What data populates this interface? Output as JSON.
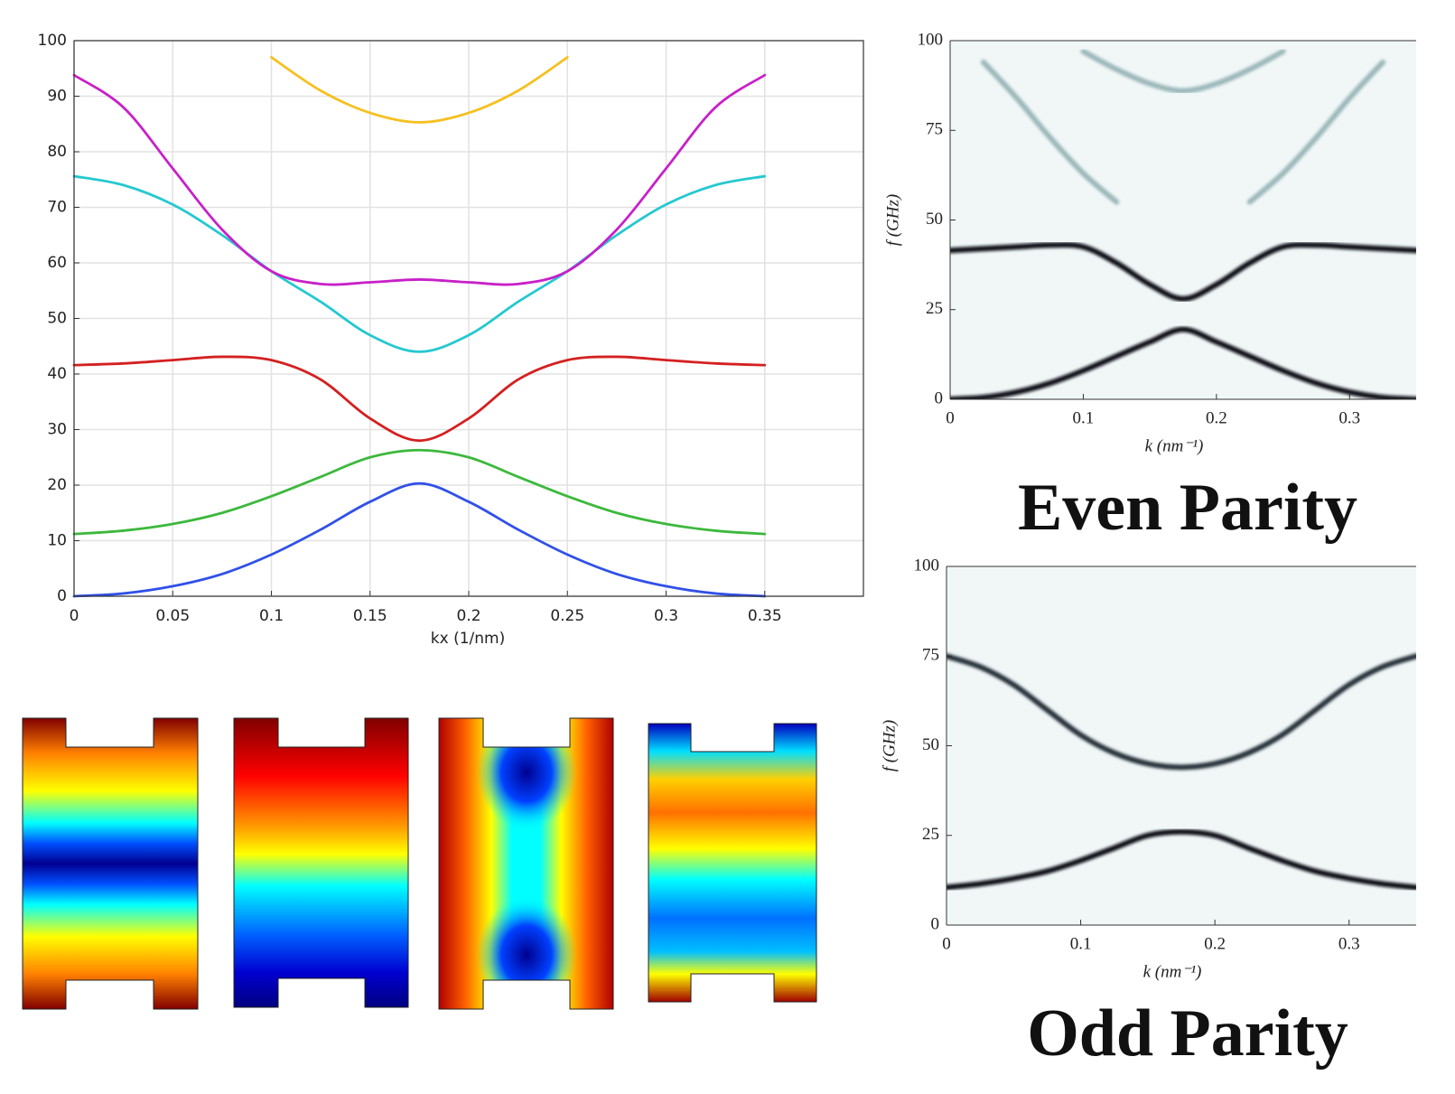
{
  "chart_data": [
    {
      "type": "line",
      "x_label": "kx (1/nm)",
      "x": [
        0,
        0.025,
        0.05,
        0.075,
        0.1,
        0.125,
        0.15,
        0.175,
        0.2,
        0.225,
        0.25,
        0.275,
        0.3,
        0.325,
        0.35
      ],
      "xlim": [
        0,
        0.4
      ],
      "xticks": [
        0,
        0.05,
        0.1,
        0.15,
        0.2,
        0.25,
        0.3,
        0.35
      ],
      "ylim": [
        0,
        100
      ],
      "yticks": [
        0,
        10,
        20,
        30,
        40,
        50,
        60,
        70,
        80,
        90,
        100
      ],
      "grid": true,
      "series": [
        {
          "color": "#3050e8",
          "values": [
            0,
            0.5,
            1.8,
            4,
            7.5,
            12,
            17,
            20.3,
            17,
            12,
            7.5,
            4,
            1.8,
            0.5,
            0
          ]
        },
        {
          "color": "#3cb83c",
          "values": [
            11.2,
            11.8,
            13,
            15,
            18,
            21.5,
            25,
            26.3,
            25,
            21.5,
            18,
            15,
            13,
            11.8,
            11.2
          ]
        },
        {
          "color": "#d42020",
          "values": [
            41.6,
            41.9,
            42.5,
            43.1,
            42.5,
            39,
            32,
            28,
            32,
            39,
            42.5,
            43.1,
            42.5,
            41.9,
            41.6
          ]
        },
        {
          "color": "#25c8d0",
          "values": [
            75.6,
            74,
            70.5,
            65,
            58.5,
            53,
            47,
            44,
            47,
            53,
            58.5,
            65,
            70.5,
            74,
            75.6
          ]
        },
        {
          "color": "#c820c8",
          "values": [
            93.8,
            88,
            77,
            66,
            58.5,
            56.2,
            56.5,
            57,
            56.5,
            56.2,
            58.5,
            66,
            77,
            88,
            93.8
          ]
        },
        {
          "color": "#f5c020",
          "values": [
            null,
            null,
            null,
            null,
            97,
            91,
            87,
            85.3,
            87,
            91,
            97,
            null,
            null,
            null,
            null
          ]
        }
      ]
    },
    {
      "type": "density",
      "title": "Even Parity",
      "x_label": "k (nm⁻¹)",
      "y_label": "f (GHz)",
      "x": [
        0,
        0.025,
        0.05,
        0.075,
        0.1,
        0.125,
        0.15,
        0.175,
        0.2,
        0.225,
        0.25,
        0.275,
        0.3,
        0.325,
        0.35
      ],
      "xlim": [
        0,
        0.35
      ],
      "xticks": [
        0,
        0.1,
        0.2,
        0.3
      ],
      "ylim": [
        0,
        100
      ],
      "yticks": [
        0,
        25,
        50,
        75,
        100
      ],
      "series": [
        {
          "color": "#101018",
          "values": [
            0,
            0.5,
            2,
            4.5,
            8,
            12,
            16,
            19.5,
            16,
            12,
            8,
            4.5,
            2,
            0.5,
            0
          ]
        },
        {
          "color": "#101018",
          "values": [
            41.5,
            42,
            42.5,
            43,
            42.5,
            38,
            32,
            28,
            32,
            38,
            42.5,
            43,
            42.5,
            42,
            41.5
          ]
        },
        {
          "color": "#9bb7ba",
          "values": [
            null,
            94,
            84,
            73,
            63,
            55,
            null,
            null,
            null,
            55,
            63,
            73,
            84,
            94,
            null
          ]
        },
        {
          "color": "#9bb7ba",
          "values": [
            null,
            null,
            null,
            null,
            97,
            92,
            88,
            86,
            88,
            92,
            97,
            null,
            null,
            null,
            null
          ]
        }
      ]
    },
    {
      "type": "density",
      "title": "Odd Parity",
      "x_label": "k (nm⁻¹)",
      "y_label": "f (GHz)",
      "x": [
        0,
        0.025,
        0.05,
        0.075,
        0.1,
        0.125,
        0.15,
        0.175,
        0.2,
        0.225,
        0.25,
        0.275,
        0.3,
        0.325,
        0.35
      ],
      "xlim": [
        0,
        0.35
      ],
      "xticks": [
        0,
        0.1,
        0.2,
        0.3
      ],
      "ylim": [
        0,
        100
      ],
      "yticks": [
        0,
        25,
        50,
        75,
        100
      ],
      "series": [
        {
          "color": "#101018",
          "values": [
            10.5,
            11.5,
            13,
            15,
            18,
            21.5,
            25,
            26,
            25,
            21.5,
            18,
            15,
            13,
            11.5,
            10.5
          ]
        },
        {
          "color": "#28303a",
          "values": [
            75,
            72,
            67,
            60,
            53,
            48,
            45,
            44,
            45,
            48,
            53,
            60,
            67,
            72,
            75
          ]
        }
      ]
    }
  ]
}
